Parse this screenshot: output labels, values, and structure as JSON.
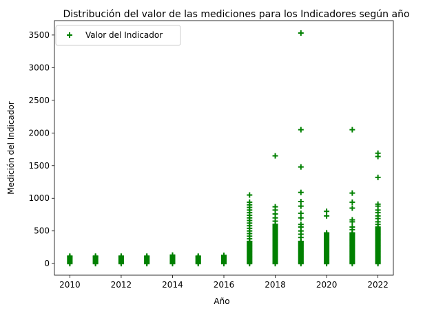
{
  "chart_data": {
    "type": "scatter",
    "title": "Distribución del valor de las mediciones para los Indicadores según año",
    "xlabel": "Año",
    "ylabel": "Medición del Indicador",
    "xlim": [
      2009.4,
      2022.6
    ],
    "ylim": [
      -177,
      3720
    ],
    "xticks": [
      2010,
      2012,
      2014,
      2016,
      2018,
      2020,
      2022
    ],
    "yticks": [
      0,
      500,
      1000,
      1500,
      2000,
      2500,
      3000,
      3500
    ],
    "grid": false,
    "legend": {
      "position": "top-left"
    },
    "marker": "+",
    "color": "#008000",
    "series": [
      {
        "name": "Valor del Indicador",
        "points": [
          {
            "x": 2010,
            "y_range": [
              0,
              115
            ]
          },
          {
            "x": 2011,
            "y_range": [
              0,
              115
            ]
          },
          {
            "x": 2012,
            "y_range": [
              0,
              115
            ]
          },
          {
            "x": 2013,
            "y_range": [
              0,
              115
            ]
          },
          {
            "x": 2014,
            "y_range": [
              0,
              130
            ]
          },
          {
            "x": 2015,
            "y_range": [
              0,
              115
            ]
          },
          {
            "x": 2016,
            "y_range": [
              0,
              125
            ]
          },
          {
            "x": 2017,
            "y_range": [
              0,
              340
            ],
            "extra": [
              380,
              420,
              460,
              500,
              540,
              580,
              620,
              660,
              700,
              740,
              780,
              820,
              860,
              900,
              940,
              1050
            ]
          },
          {
            "x": 2018,
            "y_range": [
              0,
              600
            ],
            "extra": [
              650,
              700,
              760,
              820,
              870,
              1650
            ]
          },
          {
            "x": 2019,
            "y_range": [
              0,
              340
            ],
            "extra": [
              400,
              450,
              500,
              560,
              600,
              700,
              770,
              880,
              950,
              1090,
              1480,
              2050,
              3530
            ]
          },
          {
            "x": 2020,
            "y_range": [
              0,
              470
            ],
            "extra": [
              730,
              800
            ]
          },
          {
            "x": 2021,
            "y_range": [
              0,
              470
            ],
            "extra": [
              520,
              560,
              640,
              670,
              850,
              940,
              1080,
              2050
            ]
          },
          {
            "x": 2022,
            "y_range": [
              0,
              560
            ],
            "extra": [
              600,
              640,
              690,
              730,
              780,
              820,
              880,
              910,
              1320,
              1640,
              1690
            ]
          }
        ]
      }
    ]
  }
}
